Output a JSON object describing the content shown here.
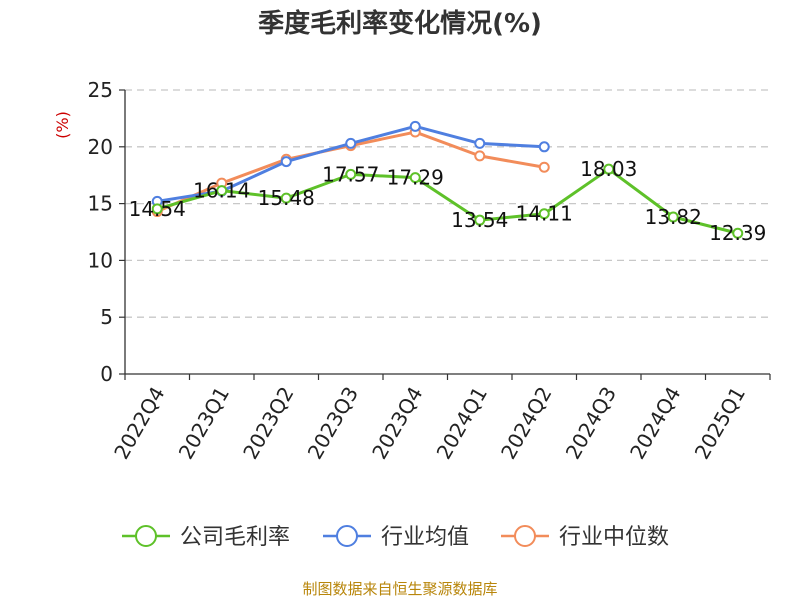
{
  "chart_data": {
    "type": "line",
    "title": "季度毛利率变化情况(%)",
    "ylabel": "(%)",
    "xlabel": "",
    "ylim": [
      0,
      25
    ],
    "yticks": [
      0,
      5,
      10,
      15,
      20,
      25
    ],
    "grid": true,
    "legend_position": "bottom",
    "categories": [
      "2022Q4",
      "2023Q1",
      "2023Q2",
      "2023Q3",
      "2023Q4",
      "2024Q1",
      "2024Q2",
      "2024Q3",
      "2024Q4",
      "2025Q1"
    ],
    "series": [
      {
        "name": "公司毛利率",
        "color": "#5ec129",
        "values": [
          14.54,
          16.14,
          15.48,
          17.57,
          17.29,
          13.54,
          14.11,
          18.03,
          13.82,
          12.39
        ],
        "labels": [
          "14.54",
          "16.14",
          "15.48",
          "17.57",
          "17.29",
          "13.54",
          "14.11",
          "18.03",
          "13.82",
          "12.39"
        ]
      },
      {
        "name": "行业均值",
        "color": "#4f7fe0",
        "values": [
          15.2,
          16.1,
          18.7,
          20.3,
          21.8,
          20.3,
          20.0,
          null,
          null,
          null
        ]
      },
      {
        "name": "行业中位数",
        "color": "#f28c5a",
        "values": [
          14.3,
          16.8,
          18.9,
          20.1,
          21.3,
          19.2,
          18.2,
          null,
          null,
          null
        ]
      }
    ],
    "source": "制图数据来自恒生聚源数据库"
  }
}
